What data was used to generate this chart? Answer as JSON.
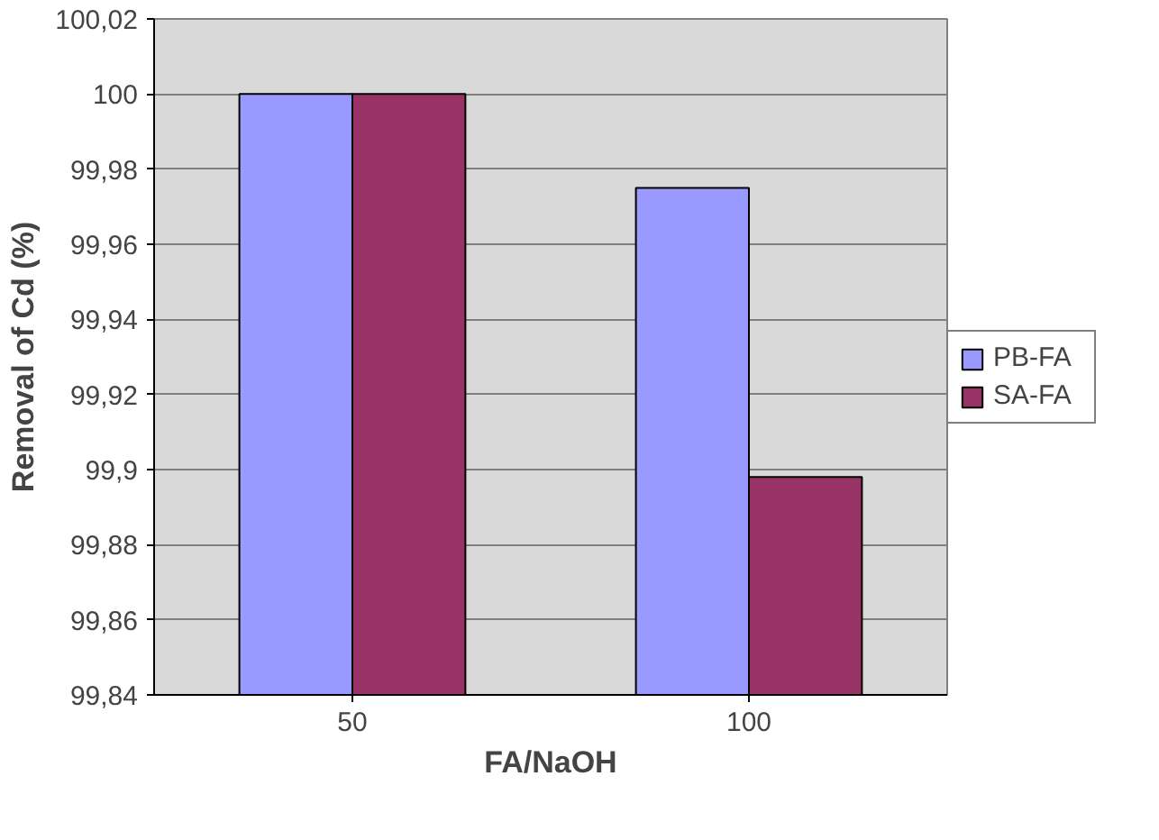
{
  "chart_data": {
    "type": "bar",
    "xlabel": "FA/NaOH",
    "ylabel": "Removal of Cd (%)",
    "categories": [
      "50",
      "100"
    ],
    "series": [
      {
        "name": "PB-FA",
        "color": "#9999ff",
        "values": [
          100,
          99.975
        ]
      },
      {
        "name": "SA-FA",
        "color": "#993366",
        "values": [
          100,
          99.898
        ]
      }
    ],
    "ylim": [
      99.84,
      100.02
    ],
    "yticks": [
      {
        "value": 99.84,
        "label": "99,84"
      },
      {
        "value": 99.86,
        "label": "99,86"
      },
      {
        "value": 99.88,
        "label": "99,88"
      },
      {
        "value": 99.9,
        "label": "99,9"
      },
      {
        "value": 99.92,
        "label": "99,92"
      },
      {
        "value": 99.94,
        "label": "99,94"
      },
      {
        "value": 99.96,
        "label": "99,96"
      },
      {
        "value": 99.98,
        "label": "99,98"
      },
      100,
      {
        "value": 100.02,
        "label": "100,02"
      }
    ],
    "grid": "y",
    "legend": "right"
  }
}
